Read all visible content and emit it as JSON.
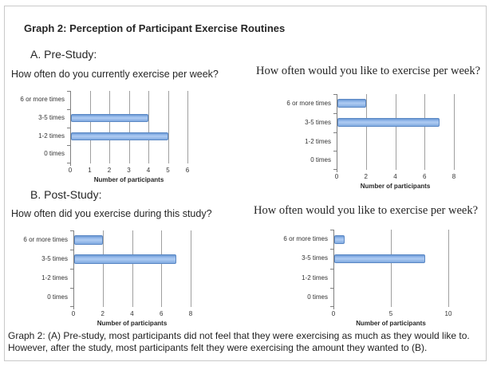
{
  "page": {
    "title": "Graph 2: Perception of Participant Exercise Routines",
    "section_a_label": "A. Pre-Study:",
    "section_b_label": "B. Post-Study:",
    "caption": "Graph 2: (A) Pre-study, most participants did not feel that they were exercising as much as they would like to. However, after the study, most participants felt they were exercising the amount they wanted to (B)."
  },
  "colors": {
    "bar_fill": "#7FA9E0",
    "bar_highlight": "#AECBF2",
    "bar_border": "#5B88C4",
    "gridline": "#9F9F9F",
    "axis": "#7F7F7F",
    "text": "#262626",
    "frame_border": "#C9C9C9"
  },
  "chart_data": [
    {
      "id": "pre-study-current",
      "type": "bar",
      "orientation": "horizontal",
      "title": "How often do you currently exercise per week?",
      "categories": [
        "6 or more times",
        "3-5 times",
        "1-2 times",
        "0 times"
      ],
      "values": [
        0,
        4,
        5,
        0
      ],
      "xlabel": "Number of participants",
      "ylabel": "",
      "xlim": [
        0,
        6
      ],
      "xticks": [
        0,
        1,
        2,
        3,
        4,
        5,
        6
      ],
      "grid": "vertical",
      "legend": "none"
    },
    {
      "id": "pre-study-desired",
      "type": "bar",
      "orientation": "horizontal",
      "title": "How often would you like to exercise per week?",
      "categories": [
        "6 or more times",
        "3-5 times",
        "1-2 times",
        "0 times"
      ],
      "values": [
        2,
        7,
        0,
        0
      ],
      "xlabel": "Number of participants",
      "ylabel": "",
      "xlim": [
        0,
        8
      ],
      "xticks": [
        0,
        2,
        4,
        6,
        8
      ],
      "grid": "vertical",
      "legend": "none"
    },
    {
      "id": "post-study-during",
      "type": "bar",
      "orientation": "horizontal",
      "title": "How often did you exercise during this study?",
      "categories": [
        "6 or more times",
        "3-5 times",
        "1-2 times",
        "0 times"
      ],
      "values": [
        2,
        7,
        0,
        0
      ],
      "xlabel": "Number of participants",
      "ylabel": "",
      "xlim": [
        0,
        8
      ],
      "xticks": [
        0,
        2,
        4,
        6,
        8
      ],
      "grid": "vertical",
      "legend": "none"
    },
    {
      "id": "post-study-desired",
      "type": "bar",
      "orientation": "horizontal",
      "title": "How often would you like to exercise per week?",
      "categories": [
        "6 or more times",
        "3-5 times",
        "1-2 times",
        "0 times"
      ],
      "values": [
        1,
        8,
        0,
        0
      ],
      "xlabel": "Number of participants",
      "ylabel": "",
      "xlim": [
        0,
        10
      ],
      "xticks": [
        0,
        5,
        10
      ],
      "grid": "vertical",
      "legend": "none"
    }
  ]
}
